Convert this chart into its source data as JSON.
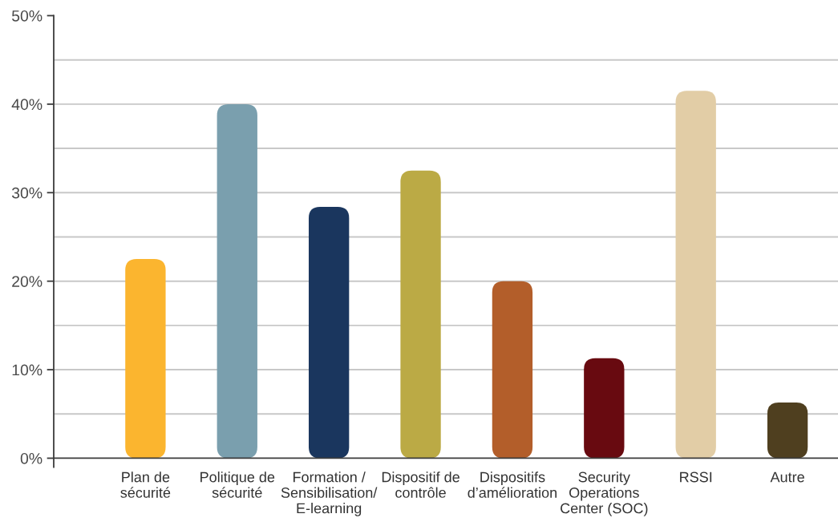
{
  "chart_data": {
    "type": "bar",
    "categories": [
      "Plan de\nsécurité",
      "Politique de\nsécurité",
      "Formation /\nSensibilisation/\nE-learning",
      "Dispositif de\ncontrôle",
      "Dispositifs\nd’amélioration",
      "Security\nOperations\nCenter (SOC)",
      "RSSI",
      "Autre"
    ],
    "values": [
      22.5,
      40,
      28.4,
      32.5,
      20,
      11.3,
      41.5,
      6.3
    ],
    "colors": [
      "#fbb52f",
      "#7a9fae",
      "#1a365e",
      "#bbaa45",
      "#b35e2a",
      "#680a10",
      "#e2cda6",
      "#4f3f1f"
    ],
    "ylim": [
      -1,
      50
    ],
    "yticks": [
      {
        "value": 0,
        "label": "0%"
      },
      {
        "value": 5,
        "label": null
      },
      {
        "value": 10,
        "label": "10%"
      },
      {
        "value": 15,
        "label": null
      },
      {
        "value": 20,
        "label": "20%"
      },
      {
        "value": 25,
        "label": null
      },
      {
        "value": 30,
        "label": "30%"
      },
      {
        "value": 35,
        "label": null
      },
      {
        "value": 40,
        "label": "40%"
      },
      {
        "value": 45,
        "label": null
      },
      {
        "value": 50,
        "label": "50%"
      }
    ],
    "grid": "y"
  }
}
